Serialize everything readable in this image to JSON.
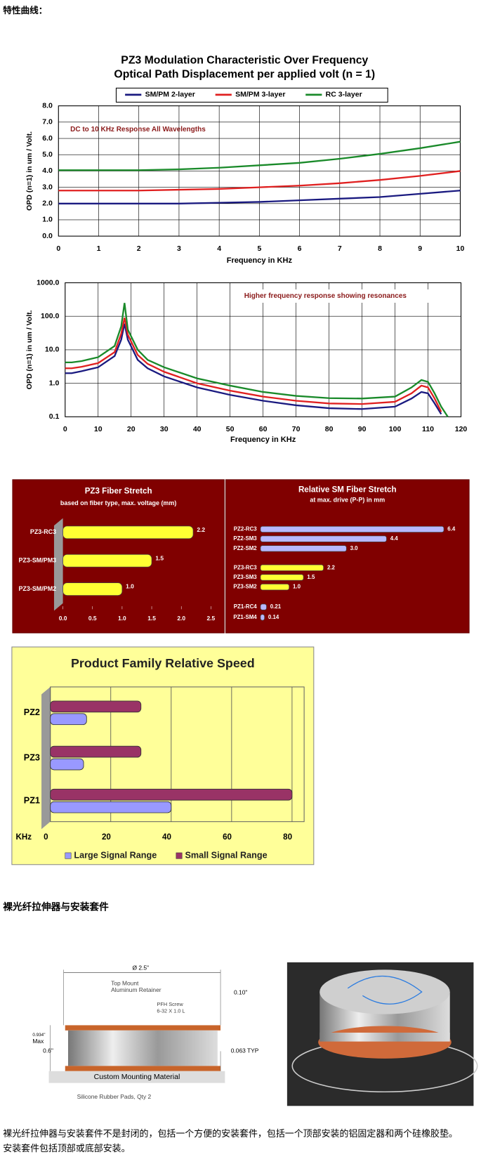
{
  "header": {
    "title": "特性曲线："
  },
  "chart_data": [
    {
      "type": "line",
      "title": "PZ3 Modulation Characteristic Over Frequency",
      "subtitle": "Optical Path Displacement per applied volt (n = 1)",
      "x": [
        0,
        1,
        2,
        3,
        4,
        5,
        6,
        7,
        8,
        9,
        10
      ],
      "series": [
        {
          "name": "SM/PM 2-layer",
          "color": "#1a1a80",
          "values": [
            2.0,
            2.0,
            2.0,
            2.0,
            2.05,
            2.1,
            2.2,
            2.3,
            2.4,
            2.6,
            2.8
          ]
        },
        {
          "name": "SM/PM 3-layer",
          "color": "#e02020",
          "values": [
            2.8,
            2.8,
            2.8,
            2.85,
            2.9,
            3.0,
            3.1,
            3.25,
            3.45,
            3.7,
            4.0
          ]
        },
        {
          "name": "RC 3-layer",
          "color": "#1a8a2a",
          "values": [
            4.05,
            4.05,
            4.05,
            4.1,
            4.2,
            4.35,
            4.5,
            4.75,
            5.05,
            5.4,
            5.8
          ]
        }
      ],
      "xlim": [
        0,
        10
      ],
      "xticks": [
        0,
        1,
        2,
        3,
        4,
        5,
        6,
        7,
        8,
        9,
        10
      ],
      "ylim": [
        0,
        8
      ],
      "yticks": [
        {
          "value": 0,
          "label": "0.0"
        },
        {
          "value": 1,
          "label": "1.0"
        },
        {
          "value": 2,
          "label": "2.0"
        },
        {
          "value": 3,
          "label": "3.0"
        },
        {
          "value": 4,
          "label": "4.0"
        },
        {
          "value": 5,
          "label": "5.0"
        },
        {
          "value": 6,
          "label": "6.0"
        },
        {
          "value": 7,
          "label": "7.0"
        },
        {
          "value": 8,
          "label": "8.0"
        }
      ],
      "grid": true,
      "legend": "top",
      "annotation": "DC to 10 KHz Response All Wavelengths",
      "xlabel": "Frequency in KHz",
      "ylabel": "OPD (n=1) in um / Volt."
    },
    {
      "type": "line",
      "log": true,
      "x": [
        0,
        2,
        5,
        10,
        15,
        17,
        18,
        19,
        22,
        25,
        30,
        40,
        50,
        60,
        70,
        80,
        90,
        100,
        105,
        108,
        110,
        112,
        114,
        116
      ],
      "series": [
        {
          "color": "#1a1a80",
          "values": [
            2.0,
            2.0,
            2.3,
            3.0,
            6.5,
            20,
            60,
            20,
            5,
            2.8,
            1.6,
            0.75,
            0.45,
            0.3,
            0.22,
            0.18,
            0.17,
            0.2,
            0.35,
            0.55,
            0.5,
            0.25,
            0.12,
            null
          ]
        },
        {
          "color": "#e02020",
          "values": [
            2.8,
            2.8,
            3.1,
            4.0,
            8.5,
            30,
            90,
            28,
            7,
            3.8,
            2.2,
            1.0,
            0.6,
            0.4,
            0.3,
            0.25,
            0.24,
            0.28,
            0.5,
            0.85,
            0.75,
            0.35,
            0.14,
            null
          ]
        },
        {
          "color": "#1a8a2a",
          "values": [
            4.2,
            4.2,
            4.6,
            6.0,
            13,
            50,
            250,
            40,
            10,
            5,
            3,
            1.4,
            0.85,
            0.55,
            0.42,
            0.36,
            0.35,
            0.4,
            0.75,
            1.25,
            1.1,
            0.5,
            0.2,
            0.1
          ]
        }
      ],
      "xlim": [
        0,
        120
      ],
      "xticks": [
        0,
        10,
        20,
        30,
        40,
        50,
        60,
        70,
        80,
        90,
        100,
        110,
        120
      ],
      "ylim": [
        0.1,
        1000
      ],
      "yticks": [
        0.1,
        {
          "value": 1,
          "label": "1.0"
        },
        {
          "value": 10,
          "label": "10.0"
        },
        {
          "value": 100,
          "label": "100.0"
        },
        {
          "value": 1000,
          "label": "1000.0"
        }
      ],
      "grid": true,
      "annotation": "Higher frequency response showing resonances",
      "xlabel": "Frequency in KHz",
      "ylabel": "OPD (n=1) in um / Volt."
    },
    {
      "type": "barh",
      "title": "PZ3 Fiber Stretch",
      "subtitle": "based on fiber type, max. voltage (mm)",
      "background": "#800000",
      "categories": [
        "PZ3-RC3",
        "PZ3-SM/PM3",
        "PZ3-SM/PM2"
      ],
      "values": [
        2.2,
        1.5,
        1.0
      ],
      "value_labels": [
        "2.2",
        "1.5",
        "1.0"
      ],
      "color": "#ffff33",
      "xlim": [
        0,
        2.5
      ],
      "xticks": [
        {
          "value": 0,
          "label": "0.0"
        },
        0.5,
        {
          "value": 1,
          "label": "1.0"
        },
        1.5,
        {
          "value": 2,
          "label": "2.0"
        },
        2.5
      ]
    },
    {
      "type": "barh",
      "title": "Relative SM Fiber Stretch",
      "subtitle": "at max. drive (P-P) in mm",
      "background": "#800000",
      "categories": [
        "PZ2-RC3",
        "PZ2-SM3",
        "PZ2-SM2",
        "PZ3-RC3",
        "PZ3-SM3",
        "PZ3-SM2",
        "PZ1-RC4",
        "PZ1-SM4"
      ],
      "values": [
        6.4,
        4.4,
        3.0,
        2.2,
        1.5,
        1.0,
        0.21,
        0.14
      ],
      "value_labels": [
        "6.4",
        "4.4",
        "3.0",
        "2.2",
        "1.5",
        "1.0",
        "0.21",
        "0.14"
      ],
      "colors": [
        "#b8b8ff",
        "#b8b8ff",
        "#b8b8ff",
        "#ffff33",
        "#ffff33",
        "#ffff33",
        "#b8b8ff",
        "#b8b8ff"
      ],
      "xlim": [
        0,
        7
      ]
    },
    {
      "type": "barh",
      "title": "Product Family Relative Speed",
      "background": "#ffff99",
      "categories": [
        "PZ2",
        "PZ3",
        "PZ1"
      ],
      "series": [
        {
          "name": "Large Signal Range",
          "color": "#9999ff",
          "values": [
            12,
            11,
            40
          ]
        },
        {
          "name": "Small Signal Range",
          "color": "#993366",
          "values": [
            30,
            30,
            80
          ]
        }
      ],
      "xlim": [
        0,
        84
      ],
      "xticks": [
        0,
        20,
        40,
        60,
        80
      ],
      "xunit": "KHz",
      "grid": true,
      "legend": "bottom"
    }
  ],
  "section": {
    "title": "裸光纤拉伸器与安装套件"
  },
  "diagram": {
    "labels": [
      "Ø 2.5\"",
      "Top Mount",
      "Aluminum Retainer",
      "PFH Screw",
      "6-32 X 1.0 L",
      "0.10\"",
      "0.934\"",
      "Max",
      "0.6\"",
      "0.063 TYP",
      "Custom Mounting Material",
      "Silicone Rubber Pads, Qty 2"
    ]
  },
  "paragraph": [
    "裸光纤拉伸器与安装套件不是封闭的，包括一个方便的安装套件，包括一个顶部安装的铝固定器和两个硅橡胶垫。",
    "安装套件包括顶部或底部安装。"
  ]
}
